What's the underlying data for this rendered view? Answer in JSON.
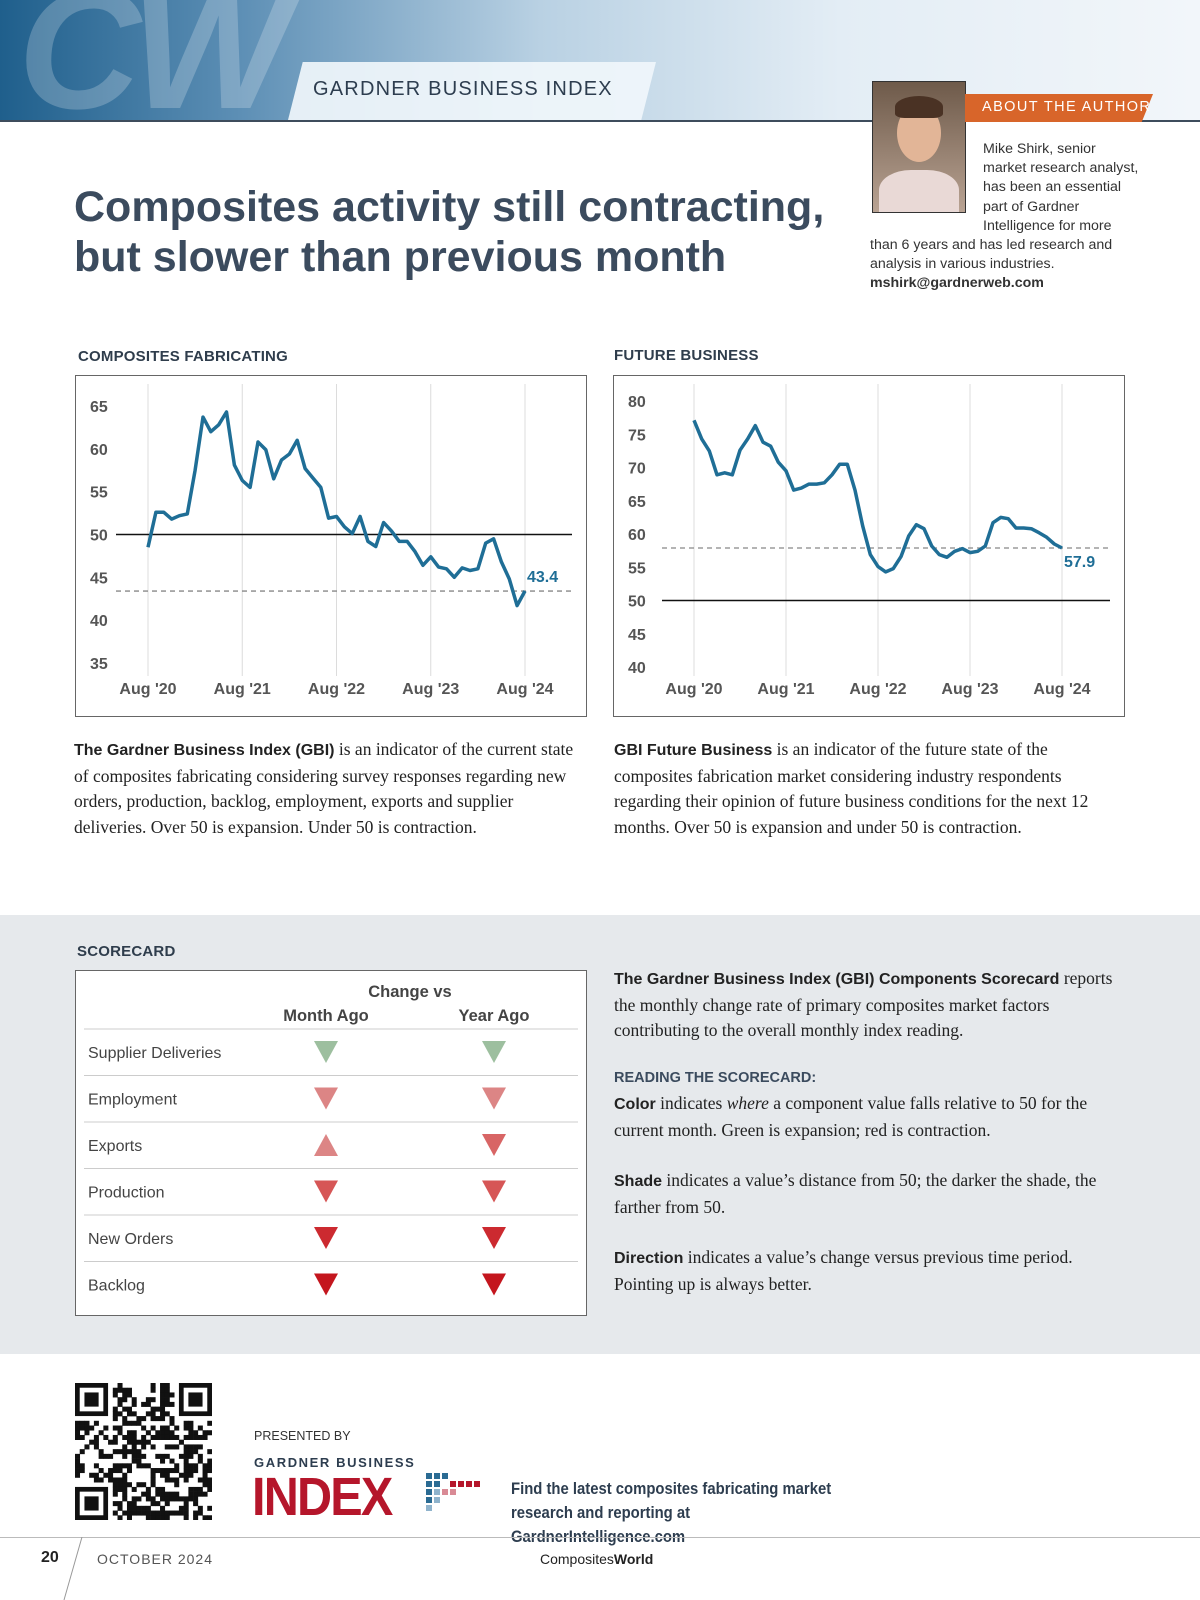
{
  "header": {
    "logo": "CW",
    "section": "GARDNER BUSINESS INDEX"
  },
  "author": {
    "heading": "ABOUT THE AUTHOR",
    "bio": "Mike Shirk, senior market research analyst, has been an essential part of Gardner Intelligence for more than 6 years and has led research and analysis in various industries.",
    "email": "mshirk@gardnerweb.com"
  },
  "title": {
    "line1": "Composites activity still contracting,",
    "line2": "but slower than previous month"
  },
  "chart_data": [
    {
      "type": "line",
      "title": "COMPOSITES FABRICATING",
      "color": "#1f6e96",
      "grid": true,
      "categories": [
        "Aug '20",
        null,
        null,
        null,
        null,
        null,
        null,
        null,
        null,
        null,
        null,
        null,
        "Aug '21",
        null,
        null,
        null,
        null,
        null,
        null,
        null,
        null,
        null,
        null,
        null,
        "Aug '22",
        null,
        null,
        null,
        null,
        null,
        null,
        null,
        null,
        null,
        null,
        null,
        "Aug '23",
        null,
        null,
        null,
        null,
        null,
        null,
        null,
        null,
        null,
        null,
        null,
        "Aug '24"
      ],
      "values": [
        48.5,
        52.6,
        52.6,
        51.8,
        52.2,
        52.4,
        57.5,
        63.7,
        62,
        62.8,
        64.3,
        58.1,
        56.3,
        55.5,
        60.8,
        59.9,
        56.5,
        58.7,
        59.4,
        61,
        57.7,
        56.6,
        55.5,
        51.9,
        52.1,
        50.9,
        50.1,
        52.1,
        49.2,
        48.6,
        51.4,
        50.4,
        49.2,
        49.2,
        48,
        46.4,
        47.4,
        46.2,
        46,
        45,
        46.1,
        45.8,
        46,
        49,
        49.5,
        46.8,
        44.8,
        41.7,
        43.4
      ],
      "ylim": [
        35,
        65
      ],
      "yticks": [
        35,
        40,
        45,
        50,
        55,
        60,
        65
      ],
      "hlines": [
        {
          "value": 50,
          "dashed": false
        },
        {
          "value": 43.4,
          "dashed": true
        }
      ]
    },
    {
      "type": "line",
      "title": "FUTURE BUSINESS",
      "color": "#1f6e96",
      "grid": true,
      "categories": [
        "Aug '20",
        null,
        null,
        null,
        null,
        null,
        null,
        null,
        null,
        null,
        null,
        null,
        "Aug '21",
        null,
        null,
        null,
        null,
        null,
        null,
        null,
        null,
        null,
        null,
        null,
        "Aug '22",
        null,
        null,
        null,
        null,
        null,
        null,
        null,
        null,
        null,
        null,
        null,
        "Aug '23",
        null,
        null,
        null,
        null,
        null,
        null,
        null,
        null,
        null,
        null,
        null,
        "Aug '24"
      ],
      "values": [
        77.1,
        74.3,
        72.5,
        68.9,
        69.2,
        68.9,
        72.6,
        74.3,
        76.3,
        73.8,
        73.2,
        70.8,
        69.5,
        66.6,
        66.9,
        67.5,
        67.5,
        67.7,
        68.9,
        70.5,
        70.5,
        66.6,
        61.2,
        56.9,
        55.1,
        54.3,
        54.8,
        56.6,
        59.7,
        61.4,
        60.8,
        58.2,
        56.9,
        56.5,
        57.4,
        57.8,
        57.2,
        57.4,
        58.2,
        61.7,
        62.5,
        62.3,
        60.9,
        60.9,
        60.8,
        60.2,
        59.5,
        58.5,
        57.9
      ],
      "ylim": [
        40,
        80
      ],
      "yticks": [
        40,
        45,
        50,
        55,
        60,
        65,
        70,
        75,
        80
      ],
      "hlines": [
        {
          "value": 50,
          "dashed": false
        },
        {
          "value": 57.9,
          "dashed": true
        }
      ]
    }
  ],
  "descriptions": [
    {
      "bold": "The Gardner Business Index (GBI)",
      "text": "is an indicator of the current state of composites fabricating considering survey responses regarding new orders, production, backlog, employment, exports and supplier deliveries. Over 50 is expansion. Under 50 is contraction."
    },
    {
      "bold": "GBI Future Business",
      "text": "is an indicator of the future state of the composites fabrication market considering industry respondents regarding their opinion of future business conditions for the next 12 months. Over 50 is expansion and under 50 is contraction."
    }
  ],
  "scorecard": {
    "title": "SCORECARD",
    "group_header": "Change vs",
    "columns": [
      "Month Ago",
      "Year Ago"
    ],
    "rows": [
      {
        "label": "Supplier Deliveries",
        "month": {
          "direction": "down",
          "color": "#9dbf9f"
        },
        "year": {
          "direction": "down",
          "color": "#9dbf9f"
        }
      },
      {
        "label": "Employment",
        "month": {
          "direction": "down",
          "color": "#dc8585"
        },
        "year": {
          "direction": "down",
          "color": "#dc8585"
        }
      },
      {
        "label": "Exports",
        "month": {
          "direction": "up",
          "color": "#dc8585"
        },
        "year": {
          "direction": "down",
          "color": "#d86565"
        }
      },
      {
        "label": "Production",
        "month": {
          "direction": "down",
          "color": "#d65656"
        },
        "year": {
          "direction": "down",
          "color": "#d65656"
        }
      },
      {
        "label": "New Orders",
        "month": {
          "direction": "down",
          "color": "#cc2a30"
        },
        "year": {
          "direction": "down",
          "color": "#cc2a30"
        }
      },
      {
        "label": "Backlog",
        "month": {
          "direction": "down",
          "color": "#c4161e"
        },
        "year": {
          "direction": "down",
          "color": "#c4161e"
        }
      }
    ]
  },
  "scorecard_text": {
    "intro_bold": "The Gardner Business Index (GBI) Components Scorecard",
    "intro": "reports the monthly change rate of primary composites market factors contributing to the overall monthly index reading.",
    "heading": "READING THE SCORECARD:",
    "items": [
      {
        "term": "Color",
        "pre": "indicates",
        "em": "where",
        "post": "a component value falls relative to 50 for the current month. Green is expansion; red is contraction."
      },
      {
        "term": "Shade",
        "pre": "indicates a value’s distance from 50; the darker the shade, the farther from 50.",
        "em": "",
        "post": ""
      },
      {
        "term": "Direction",
        "pre": "indicates a value’s change versus previous time period. Pointing up is always better.",
        "em": "",
        "post": ""
      }
    ]
  },
  "footer": {
    "presented_by": "PRESENTED BY",
    "logo_top": "GARDNER BUSINESS",
    "logo_main": "INDEX",
    "cta": "Find the latest composites fabricating market research and reporting at GardnerIntelligence.com",
    "page": "20",
    "date": "OCTOBER 2024",
    "brand_a": "Composites",
    "brand_b": "World"
  }
}
